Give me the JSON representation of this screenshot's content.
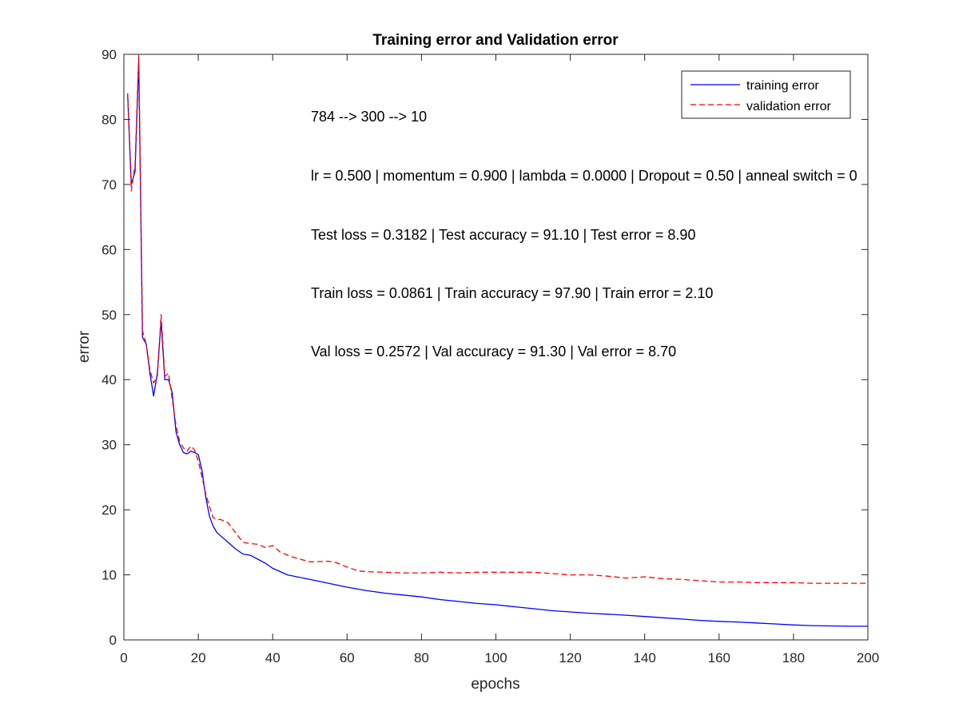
{
  "chart_data": {
    "type": "line",
    "title": "Training error and Validation error",
    "xlabel": "epochs",
    "ylabel": "error",
    "xlim": [
      0,
      200
    ],
    "ylim": [
      0,
      90
    ],
    "xticks": [
      0,
      20,
      40,
      60,
      80,
      100,
      120,
      140,
      160,
      180,
      200
    ],
    "yticks": [
      0,
      10,
      20,
      30,
      40,
      50,
      60,
      70,
      80,
      90
    ],
    "grid": false,
    "legend_location": "top-right",
    "annotations": [
      "784 --> 300 --> 10",
      "lr = 0.500 | momentum = 0.900 | lambda = 0.0000 | Dropout = 0.50 | anneal switch = 0",
      "Test loss = 0.3182 | Test accuracy = 91.10 | Test error = 8.90",
      "Train loss = 0.0861 | Train accuracy = 97.90 | Train error = 2.10",
      "Val loss = 0.2572 | Val accuracy = 91.30 | Val error = 8.70"
    ],
    "series": [
      {
        "name": "training error",
        "color": "#0000ff",
        "style": "solid",
        "points": [
          [
            1,
            84
          ],
          [
            2,
            70
          ],
          [
            3,
            72
          ],
          [
            4,
            89
          ],
          [
            5,
            46.5
          ],
          [
            6,
            45.5
          ],
          [
            7,
            41
          ],
          [
            8,
            37.5
          ],
          [
            9,
            41
          ],
          [
            10,
            49
          ],
          [
            11,
            40
          ],
          [
            12,
            40
          ],
          [
            13,
            38
          ],
          [
            14,
            32
          ],
          [
            15,
            30
          ],
          [
            16,
            28.8
          ],
          [
            17,
            28.6
          ],
          [
            18,
            29
          ],
          [
            19,
            28.8
          ],
          [
            20,
            28.5
          ],
          [
            21,
            26
          ],
          [
            22,
            22
          ],
          [
            23,
            19
          ],
          [
            24,
            17.5
          ],
          [
            25,
            16.5
          ],
          [
            26,
            16
          ],
          [
            28,
            15
          ],
          [
            30,
            14
          ],
          [
            32,
            13.2
          ],
          [
            34,
            13
          ],
          [
            36,
            12.4
          ],
          [
            38,
            11.8
          ],
          [
            40,
            11
          ],
          [
            44,
            10
          ],
          [
            50,
            9.3
          ],
          [
            55,
            8.7
          ],
          [
            60,
            8.1
          ],
          [
            65,
            7.6
          ],
          [
            70,
            7.2
          ],
          [
            75,
            6.9
          ],
          [
            80,
            6.6
          ],
          [
            85,
            6.2
          ],
          [
            90,
            5.9
          ],
          [
            95,
            5.6
          ],
          [
            100,
            5.4
          ],
          [
            105,
            5.1
          ],
          [
            110,
            4.8
          ],
          [
            115,
            4.5
          ],
          [
            120,
            4.3
          ],
          [
            125,
            4.1
          ],
          [
            130,
            3.95
          ],
          [
            135,
            3.8
          ],
          [
            140,
            3.6
          ],
          [
            145,
            3.4
          ],
          [
            150,
            3.2
          ],
          [
            155,
            3.0
          ],
          [
            160,
            2.85
          ],
          [
            165,
            2.75
          ],
          [
            170,
            2.6
          ],
          [
            175,
            2.45
          ],
          [
            180,
            2.3
          ],
          [
            185,
            2.2
          ],
          [
            190,
            2.15
          ],
          [
            195,
            2.1
          ],
          [
            200,
            2.1
          ]
        ]
      },
      {
        "name": "validation error",
        "color": "#ff0000",
        "style": "dashed",
        "points": [
          [
            1,
            84
          ],
          [
            2,
            69
          ],
          [
            3,
            73
          ],
          [
            4,
            90
          ],
          [
            5,
            47.5
          ],
          [
            6,
            45.5
          ],
          [
            7,
            41.5
          ],
          [
            8,
            39.5
          ],
          [
            9,
            40.5
          ],
          [
            10,
            50
          ],
          [
            11,
            40.5
          ],
          [
            12,
            41
          ],
          [
            13,
            37
          ],
          [
            14,
            33
          ],
          [
            15,
            30.5
          ],
          [
            16,
            29.5
          ],
          [
            17,
            29
          ],
          [
            18,
            29.8
          ],
          [
            19,
            29.2
          ],
          [
            20,
            27.5
          ],
          [
            21,
            25
          ],
          [
            22,
            22.5
          ],
          [
            23,
            20.5
          ],
          [
            24,
            18.8
          ],
          [
            25,
            18.5
          ],
          [
            26,
            18.5
          ],
          [
            28,
            18
          ],
          [
            30,
            16.5
          ],
          [
            32,
            15
          ],
          [
            34,
            14.8
          ],
          [
            36,
            14.7
          ],
          [
            38,
            14.2
          ],
          [
            40,
            14.5
          ],
          [
            42,
            13.5
          ],
          [
            45,
            12.8
          ],
          [
            50,
            12
          ],
          [
            55,
            12.1
          ],
          [
            57,
            11.9
          ],
          [
            60,
            11.2
          ],
          [
            63,
            10.6
          ],
          [
            65,
            10.5
          ],
          [
            70,
            10.4
          ],
          [
            75,
            10.3
          ],
          [
            80,
            10.3
          ],
          [
            85,
            10.4
          ],
          [
            90,
            10.3
          ],
          [
            95,
            10.4
          ],
          [
            100,
            10.4
          ],
          [
            105,
            10.4
          ],
          [
            110,
            10.4
          ],
          [
            115,
            10.2
          ],
          [
            120,
            10
          ],
          [
            125,
            10
          ],
          [
            130,
            9.8
          ],
          [
            135,
            9.5
          ],
          [
            140,
            9.7
          ],
          [
            145,
            9.4
          ],
          [
            150,
            9.3
          ],
          [
            155,
            9.1
          ],
          [
            160,
            8.9
          ],
          [
            165,
            8.9
          ],
          [
            170,
            8.8
          ],
          [
            175,
            8.8
          ],
          [
            180,
            8.8
          ],
          [
            185,
            8.7
          ],
          [
            190,
            8.7
          ],
          [
            195,
            8.7
          ],
          [
            200,
            8.7
          ]
        ]
      }
    ]
  }
}
